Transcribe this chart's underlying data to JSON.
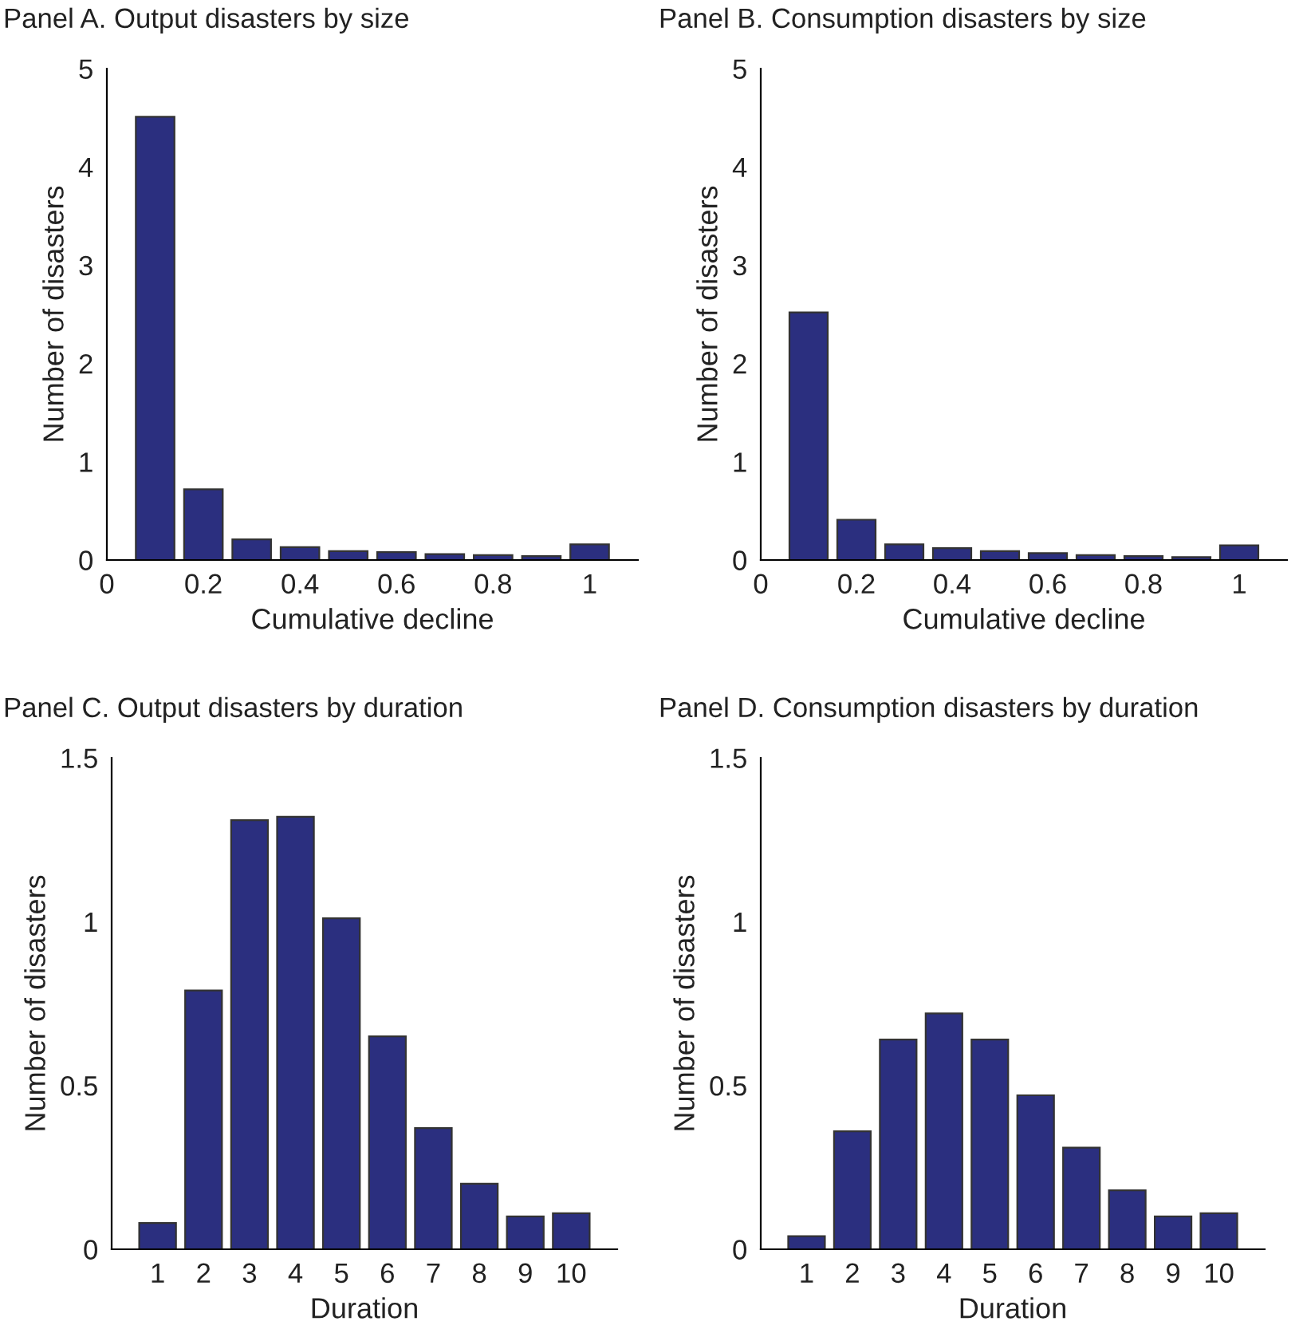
{
  "chart_data": [
    {
      "type": "bar",
      "title": "Panel A. Output disasters by size",
      "xlabel": "Cumulative decline",
      "ylabel": "Number of disasters",
      "x": [
        0.1,
        0.2,
        0.3,
        0.4,
        0.5,
        0.6,
        0.7,
        0.8,
        0.9,
        1.0
      ],
      "values": [
        4.51,
        0.72,
        0.21,
        0.13,
        0.09,
        0.08,
        0.06,
        0.05,
        0.04,
        0.16
      ],
      "color": "#2b2f7f",
      "xlim": [
        0,
        1.1
      ],
      "xticks": [
        0,
        0.2,
        0.4,
        0.6,
        0.8,
        1
      ],
      "ylim": [
        0,
        5
      ],
      "yticks": [
        0,
        1,
        2,
        3,
        4,
        5
      ],
      "grid": false
    },
    {
      "type": "bar",
      "title": "Panel B. Consumption disasters by size",
      "xlabel": "Cumulative decline",
      "ylabel": "Number of disasters",
      "x": [
        0.1,
        0.2,
        0.3,
        0.4,
        0.5,
        0.6,
        0.7,
        0.8,
        0.9,
        1.0
      ],
      "values": [
        2.52,
        0.41,
        0.16,
        0.12,
        0.09,
        0.07,
        0.05,
        0.04,
        0.03,
        0.15
      ],
      "color": "#2b2f7f",
      "xlim": [
        0,
        1.1
      ],
      "xticks": [
        0,
        0.2,
        0.4,
        0.6,
        0.8,
        1
      ],
      "ylim": [
        0,
        5
      ],
      "yticks": [
        0,
        1,
        2,
        3,
        4,
        5
      ],
      "grid": false
    },
    {
      "type": "bar",
      "title": "Panel C. Output disasters by duration",
      "xlabel": "Duration",
      "ylabel": "Number of disasters",
      "x": [
        1,
        2,
        3,
        4,
        5,
        6,
        7,
        8,
        9,
        10
      ],
      "values": [
        0.08,
        0.79,
        1.31,
        1.32,
        1.01,
        0.65,
        0.37,
        0.2,
        0.1,
        0.11
      ],
      "color": "#2b2f7f",
      "xlim": [
        0,
        11
      ],
      "xticks": [
        1,
        2,
        3,
        4,
        5,
        6,
        7,
        8,
        9,
        10
      ],
      "ylim": [
        0,
        1.5
      ],
      "yticks": [
        0,
        0.5,
        1,
        1.5
      ],
      "grid": false
    },
    {
      "type": "bar",
      "title": "Panel D. Consumption disasters by duration",
      "xlabel": "Duration",
      "ylabel": "Number of disasters",
      "x": [
        1,
        2,
        3,
        4,
        5,
        6,
        7,
        8,
        9,
        10
      ],
      "values": [
        0.04,
        0.36,
        0.64,
        0.72,
        0.64,
        0.47,
        0.31,
        0.18,
        0.1,
        0.11
      ],
      "color": "#2b2f7f",
      "xlim": [
        0,
        11
      ],
      "xticks": [
        1,
        2,
        3,
        4,
        5,
        6,
        7,
        8,
        9,
        10
      ],
      "ylim": [
        0,
        1.5
      ],
      "yticks": [
        0,
        0.5,
        1,
        1.5
      ],
      "grid": false
    }
  ]
}
